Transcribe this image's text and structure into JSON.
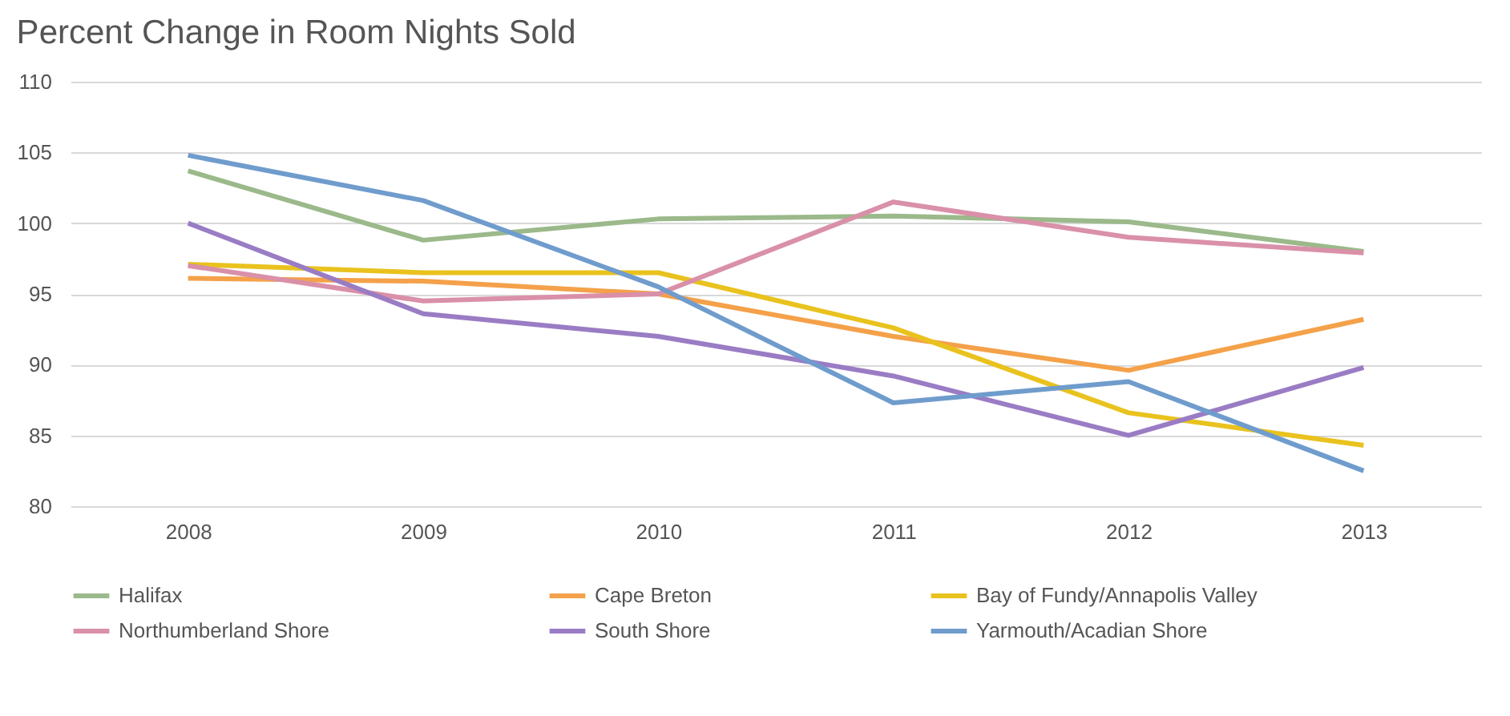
{
  "chart_data": {
    "type": "line",
    "title": "Percent Change in Room Nights Sold",
    "categories": [
      "2008",
      "2009",
      "2010",
      "2011",
      "2012",
      "2013"
    ],
    "series": [
      {
        "name": "Halifax",
        "color": "#9bb98a",
        "values": [
          103.7,
          98.8,
          100.3,
          100.5,
          100.1,
          98.0
        ]
      },
      {
        "name": "Cape Breton",
        "color": "#f4a14a",
        "values": [
          96.1,
          95.9,
          95.0,
          92.0,
          89.6,
          93.2
        ]
      },
      {
        "name": "Bay of Fundy/Annapolis Valley",
        "color": "#e9c21e",
        "values": [
          97.1,
          96.5,
          96.5,
          92.6,
          86.6,
          84.3
        ]
      },
      {
        "name": "Northumberland Shore",
        "color": "#d990a8",
        "values": [
          97.0,
          94.5,
          95.0,
          101.5,
          99.0,
          97.9
        ]
      },
      {
        "name": "South Shore",
        "color": "#9a7cc4",
        "values": [
          100.0,
          93.6,
          92.0,
          89.2,
          85.0,
          89.8
        ]
      },
      {
        "name": "Yarmouth/Acadian Shore",
        "color": "#6f9ccc",
        "values": [
          104.8,
          101.6,
          95.5,
          87.3,
          88.8,
          82.5
        ]
      }
    ],
    "ylim": [
      80,
      110
    ],
    "yticks": [
      80,
      85,
      90,
      95,
      100,
      105,
      110
    ],
    "grid": "y",
    "legend": "bottom",
    "marker": "none",
    "line_style": "solid"
  }
}
